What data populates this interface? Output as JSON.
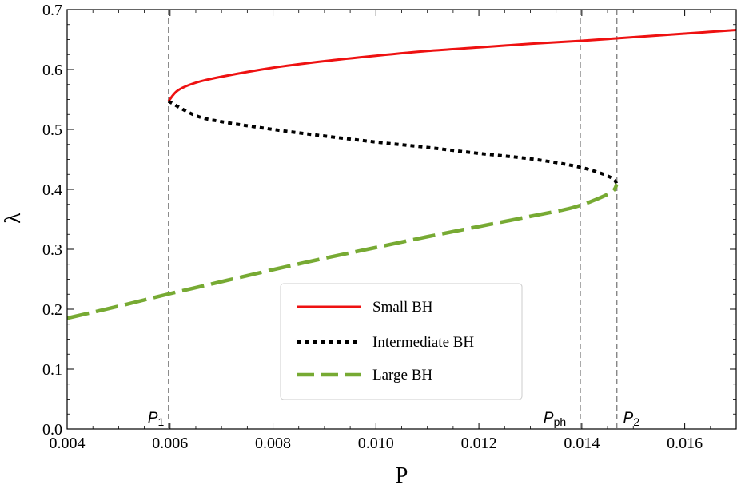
{
  "chart_data": {
    "type": "line",
    "xlabel": "P",
    "ylabel": "λ",
    "xlim": [
      0.004,
      0.017
    ],
    "ylim": [
      0.0,
      0.7
    ],
    "xticks": [
      0.004,
      0.006,
      0.008,
      0.01,
      0.012,
      0.014,
      0.016
    ],
    "xtick_labels": [
      "0.004",
      "0.006",
      "0.008",
      "0.010",
      "0.012",
      "0.014",
      "0.016"
    ],
    "yticks": [
      0.0,
      0.1,
      0.2,
      0.3,
      0.4,
      0.5,
      0.6,
      0.7
    ],
    "ytick_labels": [
      "0.0",
      "0.1",
      "0.2",
      "0.3",
      "0.4",
      "0.5",
      "0.6",
      "0.7"
    ],
    "grid": false,
    "legend_position": "bottom-center",
    "series": [
      {
        "name": "Small BH",
        "color": "#ee1111",
        "style": "solid",
        "points": [
          [
            0.00597,
            0.547
          ],
          [
            0.00615,
            0.565
          ],
          [
            0.0065,
            0.578
          ],
          [
            0.007,
            0.588
          ],
          [
            0.008,
            0.603
          ],
          [
            0.009,
            0.614
          ],
          [
            0.01,
            0.623
          ],
          [
            0.011,
            0.631
          ],
          [
            0.012,
            0.637
          ],
          [
            0.013,
            0.643
          ],
          [
            0.014,
            0.648
          ],
          [
            0.015,
            0.654
          ],
          [
            0.016,
            0.66
          ],
          [
            0.017,
            0.666
          ]
        ]
      },
      {
        "name": "Intermediate BH",
        "color": "#000000",
        "style": "dotted",
        "points": [
          [
            0.00597,
            0.547
          ],
          [
            0.0065,
            0.523
          ],
          [
            0.007,
            0.513
          ],
          [
            0.008,
            0.5
          ],
          [
            0.009,
            0.489
          ],
          [
            0.01,
            0.479
          ],
          [
            0.011,
            0.47
          ],
          [
            0.012,
            0.46
          ],
          [
            0.013,
            0.451
          ],
          [
            0.0138,
            0.44
          ],
          [
            0.0143,
            0.429
          ],
          [
            0.0146,
            0.418
          ],
          [
            0.01468,
            0.409
          ]
        ]
      },
      {
        "name": "Large BH",
        "color": "#77aa33",
        "style": "dashed",
        "points": [
          [
            0.004,
            0.185
          ],
          [
            0.005,
            0.205
          ],
          [
            0.006,
            0.226
          ],
          [
            0.007,
            0.246
          ],
          [
            0.008,
            0.266
          ],
          [
            0.009,
            0.285
          ],
          [
            0.01,
            0.303
          ],
          [
            0.011,
            0.321
          ],
          [
            0.012,
            0.338
          ],
          [
            0.013,
            0.355
          ],
          [
            0.0138,
            0.369
          ],
          [
            0.0143,
            0.384
          ],
          [
            0.0146,
            0.397
          ],
          [
            0.01468,
            0.409
          ]
        ]
      }
    ],
    "markers": [
      {
        "x": 0.00597,
        "label": "P",
        "sub": "1"
      },
      {
        "x": 0.01397,
        "label": "P",
        "sub": "ph"
      },
      {
        "x": 0.01468,
        "label": "P",
        "sub": "2"
      }
    ]
  }
}
